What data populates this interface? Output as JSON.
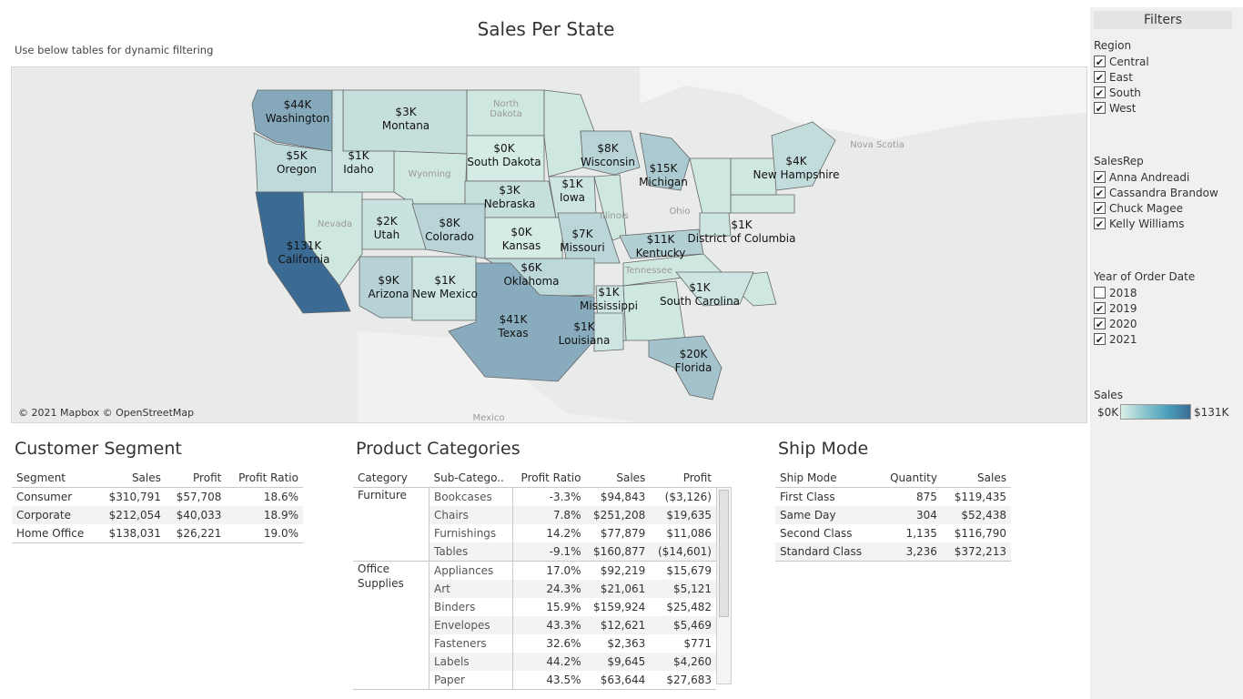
{
  "title": "Sales Per State",
  "subtitle": "Use below tables for dynamic filtering",
  "map": {
    "credit": "© 2021 Mapbox © OpenStreetMap",
    "color_scale": [
      "#d5ece6",
      "#3b6b94"
    ],
    "states": [
      {
        "label": "$44K\nWashington",
        "value": 44
      },
      {
        "label": "$3K\nMontana",
        "value": 3
      },
      {
        "label": "$5K\nOregon",
        "value": 5
      },
      {
        "label": "$1K\nIdaho",
        "value": 1
      },
      {
        "label": "$0K\nSouth Dakota",
        "value": 0
      },
      {
        "label": "$8K\nWisconsin",
        "value": 8
      },
      {
        "label": "$15K\nMichigan",
        "value": 15
      },
      {
        "label": "$4K\nNew Hampshire",
        "value": 4
      },
      {
        "label": "$3K\nNebraska",
        "value": 3
      },
      {
        "label": "$1K\nIowa",
        "value": 1
      },
      {
        "label": "$2K\nUtah",
        "value": 2
      },
      {
        "label": "$8K\nColorado",
        "value": 8
      },
      {
        "label": "$0K\nKansas",
        "value": 0
      },
      {
        "label": "$7K\nMissouri",
        "value": 7
      },
      {
        "label": "$131K\nCalifornia",
        "value": 131
      },
      {
        "label": "$11K\nKentucky",
        "value": 11
      },
      {
        "label": "$1K\nDistrict of Columbia",
        "value": 1
      },
      {
        "label": "$9K\nArizona",
        "value": 9
      },
      {
        "label": "$1K\nNew Mexico",
        "value": 1
      },
      {
        "label": "$6K\nOklahoma",
        "value": 6
      },
      {
        "label": "$41K\nTexas",
        "value": 41
      },
      {
        "label": "$1K\nMississippi",
        "value": 1
      },
      {
        "label": "$1K\nSouth Carolina",
        "value": 1
      },
      {
        "label": "$1K\nLouisiana",
        "value": 1
      },
      {
        "label": "$20K\nFlorida",
        "value": 20
      }
    ],
    "places": [
      "North Dakota",
      "Wyoming",
      "Nova Scotia",
      "Mexico",
      "Nevada",
      "Illinois",
      "Ohio",
      "Tennessee"
    ]
  },
  "customer_segment": {
    "title": "Customer Segment",
    "headers": [
      "Segment",
      "Sales",
      "Profit",
      "Profit Ratio"
    ],
    "rows": [
      [
        "Consumer",
        "$310,791",
        "$57,708",
        "18.6%"
      ],
      [
        "Corporate",
        "$212,054",
        "$40,033",
        "18.9%"
      ],
      [
        "Home Office",
        "$138,031",
        "$26,221",
        "19.0%"
      ]
    ]
  },
  "product_categories": {
    "title": "Product Categories",
    "headers": [
      "Category",
      "Sub-Catego..",
      "Profit Ratio",
      "Sales",
      "Profit"
    ],
    "groups": [
      {
        "category": "Furniture",
        "rows": [
          [
            "Bookcases",
            "-3.3%",
            "$94,843",
            "($3,126)"
          ],
          [
            "Chairs",
            "7.8%",
            "$251,208",
            "$19,635"
          ],
          [
            "Furnishings",
            "14.2%",
            "$77,879",
            "$11,086"
          ],
          [
            "Tables",
            "-9.1%",
            "$160,877",
            "($14,601)"
          ]
        ]
      },
      {
        "category": "Office Supplies",
        "rows": [
          [
            "Appliances",
            "17.0%",
            "$92,219",
            "$15,679"
          ],
          [
            "Art",
            "24.3%",
            "$21,061",
            "$5,121"
          ],
          [
            "Binders",
            "15.9%",
            "$159,924",
            "$25,482"
          ],
          [
            "Envelopes",
            "43.3%",
            "$12,621",
            "$5,469"
          ],
          [
            "Fasteners",
            "32.6%",
            "$2,363",
            "$771"
          ],
          [
            "Labels",
            "44.2%",
            "$9,645",
            "$4,260"
          ],
          [
            "Paper",
            "43.5%",
            "$63,644",
            "$27,683"
          ]
        ]
      }
    ]
  },
  "ship_mode": {
    "title": "Ship Mode",
    "headers": [
      "Ship Mode",
      "Quantity",
      "Sales"
    ],
    "rows": [
      [
        "First Class",
        "875",
        "$119,435"
      ],
      [
        "Same Day",
        "304",
        "$52,438"
      ],
      [
        "Second Class",
        "1,135",
        "$116,790"
      ],
      [
        "Standard Class",
        "3,236",
        "$372,213"
      ]
    ]
  },
  "filters": {
    "title": "Filters",
    "region": {
      "label": "Region",
      "items": [
        {
          "label": "Central",
          "checked": true
        },
        {
          "label": "East",
          "checked": true
        },
        {
          "label": "South",
          "checked": true
        },
        {
          "label": "West",
          "checked": true
        }
      ]
    },
    "salesrep": {
      "label": "SalesRep",
      "items": [
        {
          "label": "Anna Andreadi",
          "checked": true
        },
        {
          "label": "Cassandra Brandow",
          "checked": true
        },
        {
          "label": "Chuck Magee",
          "checked": true
        },
        {
          "label": "Kelly Williams",
          "checked": true
        }
      ]
    },
    "year": {
      "label": "Year of Order Date",
      "items": [
        {
          "label": "2018",
          "checked": false
        },
        {
          "label": "2019",
          "checked": true
        },
        {
          "label": "2020",
          "checked": true
        },
        {
          "label": "2021",
          "checked": true
        }
      ]
    },
    "legend": {
      "label": "Sales",
      "min": "$0K",
      "max": "$131K"
    }
  }
}
